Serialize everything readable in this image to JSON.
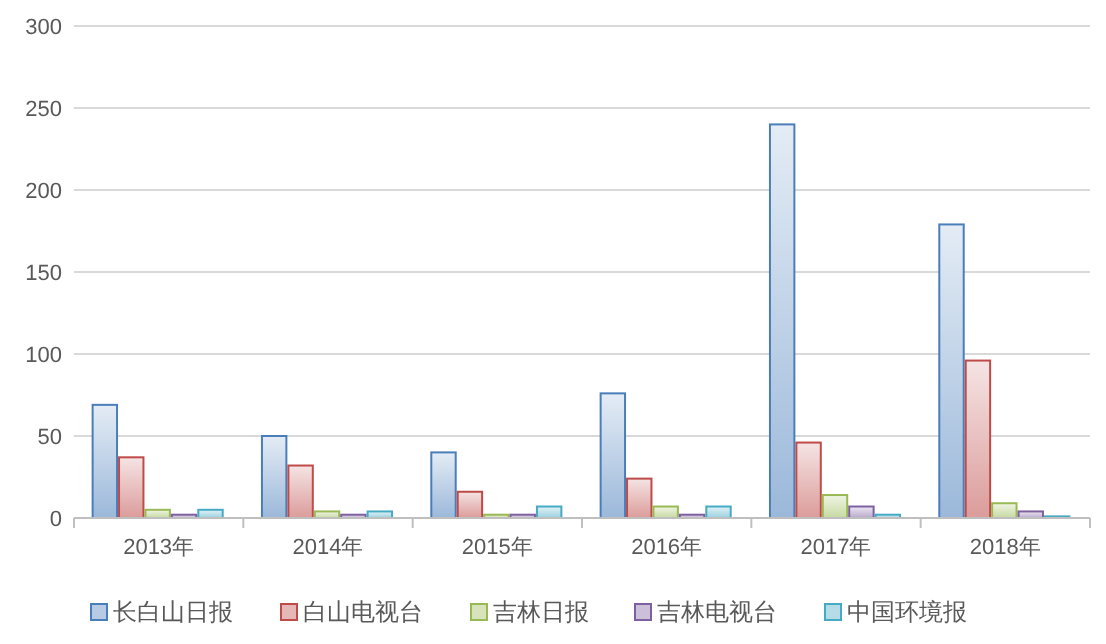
{
  "chart_data": {
    "type": "bar",
    "categories": [
      "2013年",
      "2014年",
      "2015年",
      "2016年",
      "2017年",
      "2018年"
    ],
    "series": [
      {
        "name": "长白山日报",
        "color": "#4a7ebb",
        "values": [
          69,
          50,
          40,
          76,
          240,
          179
        ]
      },
      {
        "name": "白山电视台",
        "color": "#be4b48",
        "values": [
          37,
          32,
          16,
          24,
          46,
          96
        ]
      },
      {
        "name": "吉林日报",
        "color": "#98b954",
        "values": [
          5,
          4,
          2,
          7,
          14,
          9
        ]
      },
      {
        "name": "吉林电视台",
        "color": "#7d60a0",
        "values": [
          2,
          2,
          2,
          2,
          7,
          4
        ]
      },
      {
        "name": "中国环境报",
        "color": "#46aac5",
        "values": [
          5,
          4,
          7,
          7,
          2,
          1
        ]
      }
    ],
    "ylim": [
      0,
      300
    ],
    "yticks": [
      0,
      50,
      100,
      150,
      200,
      250,
      300
    ],
    "grid": "y",
    "legend": "bottom"
  }
}
